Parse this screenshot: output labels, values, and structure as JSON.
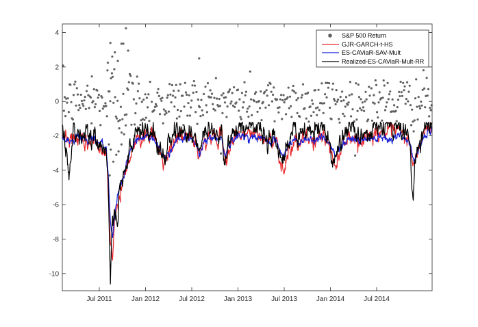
{
  "chart_data": {
    "type": "line",
    "title": "",
    "xlabel": "",
    "ylabel": "",
    "ylim": [
      -11,
      4.5
    ],
    "xlim": [
      0,
      1000
    ],
    "yticks": [
      4,
      2,
      0,
      -2,
      -4,
      -6,
      -8,
      -10
    ],
    "xticks": [
      {
        "pos": 100,
        "label": "Jul 2011"
      },
      {
        "pos": 225,
        "label": "Jan 2012"
      },
      {
        "pos": 350,
        "label": "Jul 2012"
      },
      {
        "pos": 475,
        "label": "Jan 2013"
      },
      {
        "pos": 600,
        "label": "Jul 2013"
      },
      {
        "pos": 725,
        "label": "Jan 2014"
      },
      {
        "pos": 850,
        "label": "Jul 2014"
      }
    ],
    "legend_position": "top-right",
    "returns": {
      "name": "S&P 500 Return",
      "color": "#606060",
      "typical_sd": 0.75,
      "large_points": [
        {
          "x": 172,
          "y": 4.25
        },
        {
          "x": 130,
          "y": 3.4
        },
        {
          "x": 160,
          "y": 3.35
        },
        {
          "x": 165,
          "y": 3.35
        },
        {
          "x": 178,
          "y": 2.95
        },
        {
          "x": 142,
          "y": 2.85
        },
        {
          "x": 150,
          "y": 2.35
        },
        {
          "x": 370,
          "y": 2.5
        },
        {
          "x": 80,
          "y": 1.45
        },
        {
          "x": 126,
          "y": -2.5
        },
        {
          "x": 128,
          "y": -4.3
        },
        {
          "x": 138,
          "y": -3.5
        },
        {
          "x": 146,
          "y": -3.1
        },
        {
          "x": 131,
          "y": -2.8
        },
        {
          "x": 152,
          "y": -2.9
        },
        {
          "x": 160,
          "y": -2.5
        },
        {
          "x": 135,
          "y": 2.6
        },
        {
          "x": 122,
          "y": 1.8
        }
      ]
    },
    "series": [
      {
        "name": "GJR-GARCH-t-HS",
        "color": "#e8262a",
        "anchors": [
          [
            0,
            -2.0
          ],
          [
            20,
            -2.3
          ],
          [
            40,
            -2.1
          ],
          [
            60,
            -2.6
          ],
          [
            80,
            -2.3
          ],
          [
            100,
            -2.6
          ],
          [
            118,
            -2.7
          ],
          [
            124,
            -5.0
          ],
          [
            130,
            -8.0
          ],
          [
            136,
            -9.1
          ],
          [
            142,
            -7.0
          ],
          [
            155,
            -5.5
          ],
          [
            170,
            -4.0
          ],
          [
            185,
            -3.0
          ],
          [
            200,
            -2.3
          ],
          [
            215,
            -2.0
          ],
          [
            230,
            -1.8
          ],
          [
            250,
            -2.2
          ],
          [
            265,
            -3.0
          ],
          [
            275,
            -3.6
          ],
          [
            290,
            -3.1
          ],
          [
            310,
            -2.0
          ],
          [
            330,
            -2.1
          ],
          [
            350,
            -2.0
          ],
          [
            360,
            -2.5
          ],
          [
            370,
            -3.4
          ],
          [
            385,
            -2.2
          ],
          [
            400,
            -2.0
          ],
          [
            415,
            -2.1
          ],
          [
            430,
            -2.0
          ],
          [
            440,
            -3.7
          ],
          [
            455,
            -2.4
          ],
          [
            470,
            -2.0
          ],
          [
            490,
            -1.8
          ],
          [
            520,
            -1.9
          ],
          [
            540,
            -2.1
          ],
          [
            555,
            -2.4
          ],
          [
            565,
            -2.2
          ],
          [
            580,
            -2.3
          ],
          [
            590,
            -3.5
          ],
          [
            600,
            -4.0
          ],
          [
            610,
            -2.9
          ],
          [
            630,
            -2.2
          ],
          [
            640,
            -2.8
          ],
          [
            650,
            -2.3
          ],
          [
            665,
            -2.0
          ],
          [
            680,
            -2.4
          ],
          [
            700,
            -2.0
          ],
          [
            720,
            -2.3
          ],
          [
            730,
            -3.4
          ],
          [
            740,
            -3.8
          ],
          [
            750,
            -2.7
          ],
          [
            770,
            -2.1
          ],
          [
            790,
            -2.1
          ],
          [
            805,
            -2.3
          ],
          [
            820,
            -2.1
          ],
          [
            840,
            -2.0
          ],
          [
            860,
            -1.7
          ],
          [
            875,
            -1.8
          ],
          [
            890,
            -1.9
          ],
          [
            910,
            -1.7
          ],
          [
            925,
            -2.1
          ],
          [
            940,
            -2.3
          ],
          [
            950,
            -3.9
          ],
          [
            960,
            -3.0
          ],
          [
            975,
            -2.0
          ],
          [
            990,
            -1.6
          ],
          [
            1000,
            -1.5
          ]
        ]
      },
      {
        "name": "ES-CAViaR-SAV-Mult",
        "color": "#1a22d6",
        "anchors": [
          [
            0,
            -2.1
          ],
          [
            20,
            -2.4
          ],
          [
            40,
            -2.0
          ],
          [
            60,
            -2.2
          ],
          [
            80,
            -2.1
          ],
          [
            100,
            -2.4
          ],
          [
            118,
            -2.6
          ],
          [
            124,
            -4.5
          ],
          [
            130,
            -7.2
          ],
          [
            136,
            -8.0
          ],
          [
            142,
            -6.5
          ],
          [
            155,
            -5.0
          ],
          [
            170,
            -3.9
          ],
          [
            185,
            -2.9
          ],
          [
            200,
            -2.3
          ],
          [
            215,
            -2.1
          ],
          [
            230,
            -2.0
          ],
          [
            250,
            -2.2
          ],
          [
            265,
            -2.8
          ],
          [
            275,
            -3.4
          ],
          [
            290,
            -3.0
          ],
          [
            310,
            -2.1
          ],
          [
            330,
            -2.2
          ],
          [
            350,
            -2.1
          ],
          [
            360,
            -2.4
          ],
          [
            370,
            -3.0
          ],
          [
            385,
            -2.3
          ],
          [
            400,
            -2.1
          ],
          [
            415,
            -2.2
          ],
          [
            430,
            -2.0
          ],
          [
            440,
            -3.1
          ],
          [
            455,
            -2.4
          ],
          [
            470,
            -2.1
          ],
          [
            490,
            -2.0
          ],
          [
            520,
            -2.1
          ],
          [
            540,
            -2.2
          ],
          [
            555,
            -2.3
          ],
          [
            565,
            -2.2
          ],
          [
            580,
            -2.3
          ],
          [
            590,
            -3.0
          ],
          [
            600,
            -3.2
          ],
          [
            610,
            -2.6
          ],
          [
            630,
            -2.2
          ],
          [
            640,
            -2.5
          ],
          [
            650,
            -2.2
          ],
          [
            665,
            -2.1
          ],
          [
            680,
            -2.3
          ],
          [
            700,
            -2.0
          ],
          [
            720,
            -2.3
          ],
          [
            730,
            -2.9
          ],
          [
            740,
            -3.2
          ],
          [
            750,
            -2.6
          ],
          [
            770,
            -2.2
          ],
          [
            790,
            -2.2
          ],
          [
            805,
            -2.3
          ],
          [
            820,
            -2.2
          ],
          [
            840,
            -2.1
          ],
          [
            860,
            -2.0
          ],
          [
            875,
            -2.1
          ],
          [
            890,
            -2.1
          ],
          [
            910,
            -2.0
          ],
          [
            925,
            -2.2
          ],
          [
            940,
            -2.4
          ],
          [
            950,
            -3.4
          ],
          [
            960,
            -2.9
          ],
          [
            975,
            -2.2
          ],
          [
            990,
            -1.8
          ],
          [
            1000,
            -1.7
          ]
        ]
      },
      {
        "name": "Realized-ES-CAViaR-Mult-RR",
        "color": "#000000",
        "anchors": [
          [
            0,
            -1.5
          ],
          [
            10,
            -2.5
          ],
          [
            20,
            -4.2
          ],
          [
            30,
            -2.1
          ],
          [
            40,
            -1.7
          ],
          [
            55,
            -2.0
          ],
          [
            65,
            -1.5
          ],
          [
            80,
            -1.9
          ],
          [
            100,
            -2.6
          ],
          [
            118,
            -2.3
          ],
          [
            124,
            -5.5
          ],
          [
            128,
            -8.5
          ],
          [
            130,
            -10.3
          ],
          [
            134,
            -7.5
          ],
          [
            140,
            -6.0
          ],
          [
            148,
            -6.9
          ],
          [
            155,
            -4.5
          ],
          [
            165,
            -4.2
          ],
          [
            175,
            -3.7
          ],
          [
            185,
            -2.8
          ],
          [
            200,
            -2.0
          ],
          [
            215,
            -1.8
          ],
          [
            230,
            -1.7
          ],
          [
            250,
            -2.0
          ],
          [
            265,
            -2.9
          ],
          [
            275,
            -3.3
          ],
          [
            290,
            -2.5
          ],
          [
            310,
            -1.6
          ],
          [
            330,
            -1.8
          ],
          [
            350,
            -1.7
          ],
          [
            360,
            -2.3
          ],
          [
            370,
            -3.2
          ],
          [
            385,
            -1.9
          ],
          [
            400,
            -1.6
          ],
          [
            415,
            -1.8
          ],
          [
            430,
            -1.7
          ],
          [
            440,
            -3.4
          ],
          [
            455,
            -2.0
          ],
          [
            470,
            -1.6
          ],
          [
            490,
            -1.4
          ],
          [
            520,
            -1.6
          ],
          [
            540,
            -1.8
          ],
          [
            555,
            -2.2
          ],
          [
            565,
            -1.8
          ],
          [
            580,
            -2.0
          ],
          [
            590,
            -3.0
          ],
          [
            600,
            -3.6
          ],
          [
            610,
            -2.4
          ],
          [
            630,
            -1.6
          ],
          [
            640,
            -2.4
          ],
          [
            650,
            -1.9
          ],
          [
            665,
            -1.6
          ],
          [
            680,
            -2.0
          ],
          [
            700,
            -1.5
          ],
          [
            720,
            -1.9
          ],
          [
            730,
            -3.0
          ],
          [
            740,
            -3.4
          ],
          [
            750,
            -2.3
          ],
          [
            770,
            -1.7
          ],
          [
            790,
            -1.8
          ],
          [
            805,
            -2.0
          ],
          [
            820,
            -1.8
          ],
          [
            840,
            -1.6
          ],
          [
            860,
            -1.4
          ],
          [
            875,
            -1.4
          ],
          [
            890,
            -1.6
          ],
          [
            910,
            -1.3
          ],
          [
            925,
            -1.8
          ],
          [
            940,
            -2.2
          ],
          [
            945,
            -4.5
          ],
          [
            948,
            -5.3
          ],
          [
            955,
            -3.5
          ],
          [
            965,
            -2.5
          ],
          [
            975,
            -1.9
          ],
          [
            990,
            -1.3
          ],
          [
            1000,
            -1.4
          ]
        ]
      }
    ]
  }
}
